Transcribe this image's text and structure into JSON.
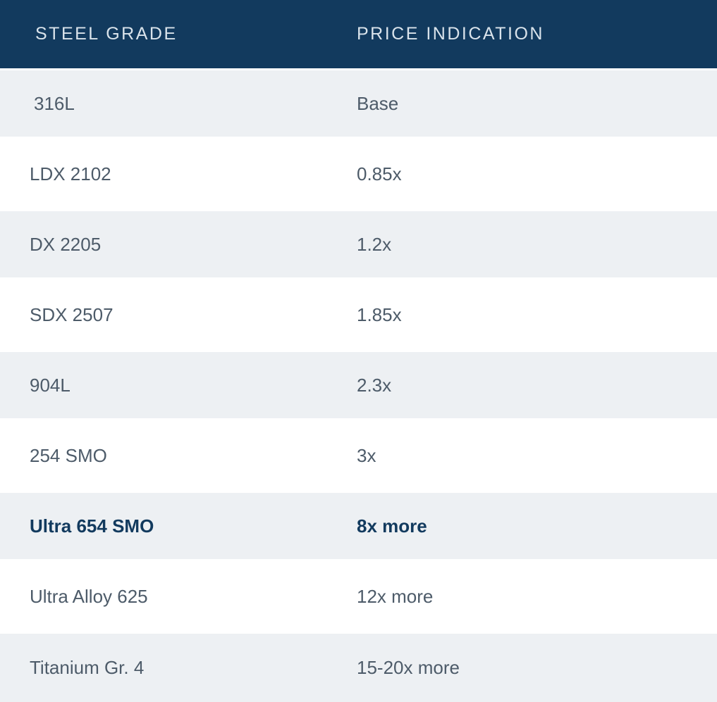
{
  "table": {
    "columns": [
      {
        "label": "STEEL GRADE"
      },
      {
        "label": "PRICE INDICATION"
      }
    ],
    "rows": [
      {
        "grade": "316L",
        "price": "Base",
        "emphasized": false
      },
      {
        "grade": "LDX 2102",
        "price": "0.85x",
        "emphasized": false
      },
      {
        "grade": "DX 2205",
        "price": "1.2x",
        "emphasized": false
      },
      {
        "grade": "SDX 2507",
        "price": "1.85x",
        "emphasized": false
      },
      {
        "grade": "904L",
        "price": "2.3x",
        "emphasized": false
      },
      {
        "grade": "254 SMO",
        "price": "3x",
        "emphasized": false
      },
      {
        "grade": "Ultra 654 SMO",
        "price": "8x more",
        "emphasized": true
      },
      {
        "grade": "Ultra Alloy 625",
        "price": "12x more",
        "emphasized": false
      },
      {
        "grade": "Titanium Gr. 4",
        "price": "15-20x more",
        "emphasized": false
      }
    ],
    "colors": {
      "header_bg": "#123a5e",
      "header_text": "#d9e3eb",
      "row_alt_bg": "#edf0f3",
      "row_text": "#4d5b69",
      "emphasis_text": "#123a5e"
    }
  }
}
